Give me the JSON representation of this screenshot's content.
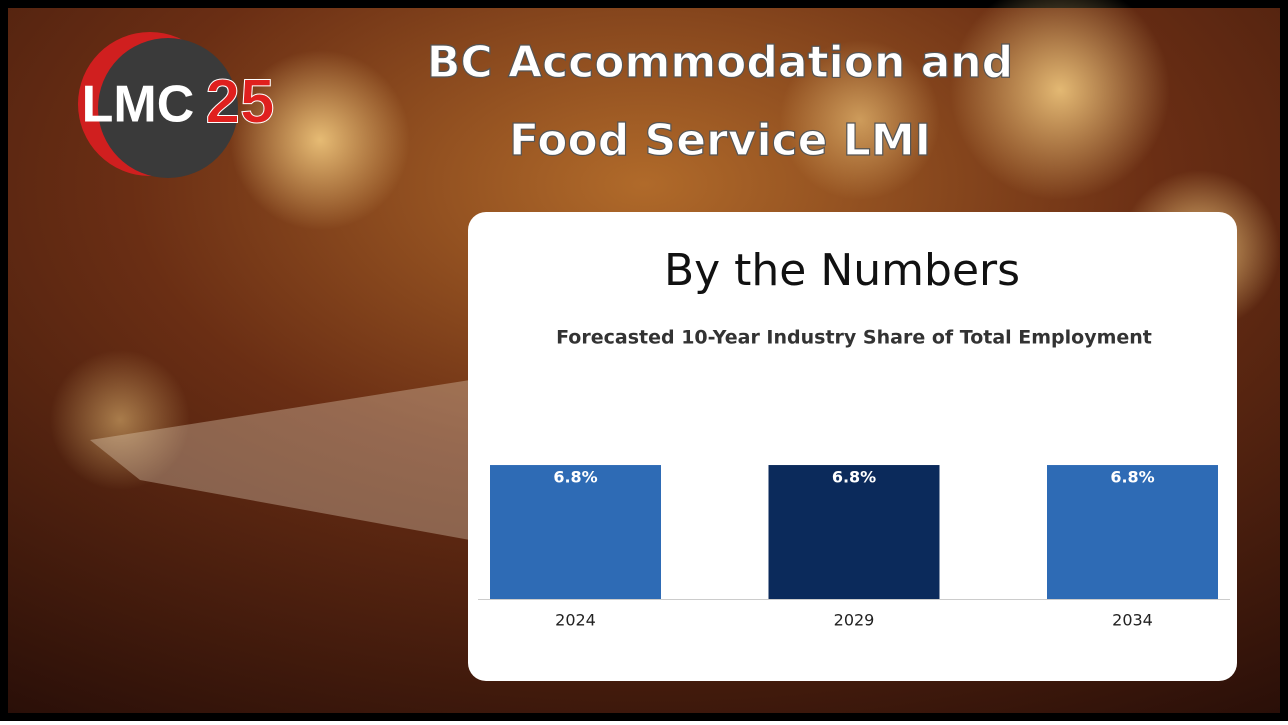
{
  "slide": {
    "title_lines": [
      "BC Accommodation and",
      "Food Service LMI"
    ],
    "heading": "By the Numbers"
  },
  "logo": {
    "letters": "LMC",
    "number": "25"
  },
  "chart_data": {
    "type": "bar",
    "title": "Forecasted 10-Year Industry Share of Total Employment",
    "categories": [
      "2024",
      "2029",
      "2034"
    ],
    "values": [
      6.8,
      6.8,
      6.8
    ],
    "value_labels": [
      "6.8%",
      "6.8%",
      "6.8%"
    ],
    "colors": [
      "#2e6bb5",
      "#0b2a5b",
      "#2e6bb5"
    ],
    "ylim": [
      0,
      10
    ]
  }
}
